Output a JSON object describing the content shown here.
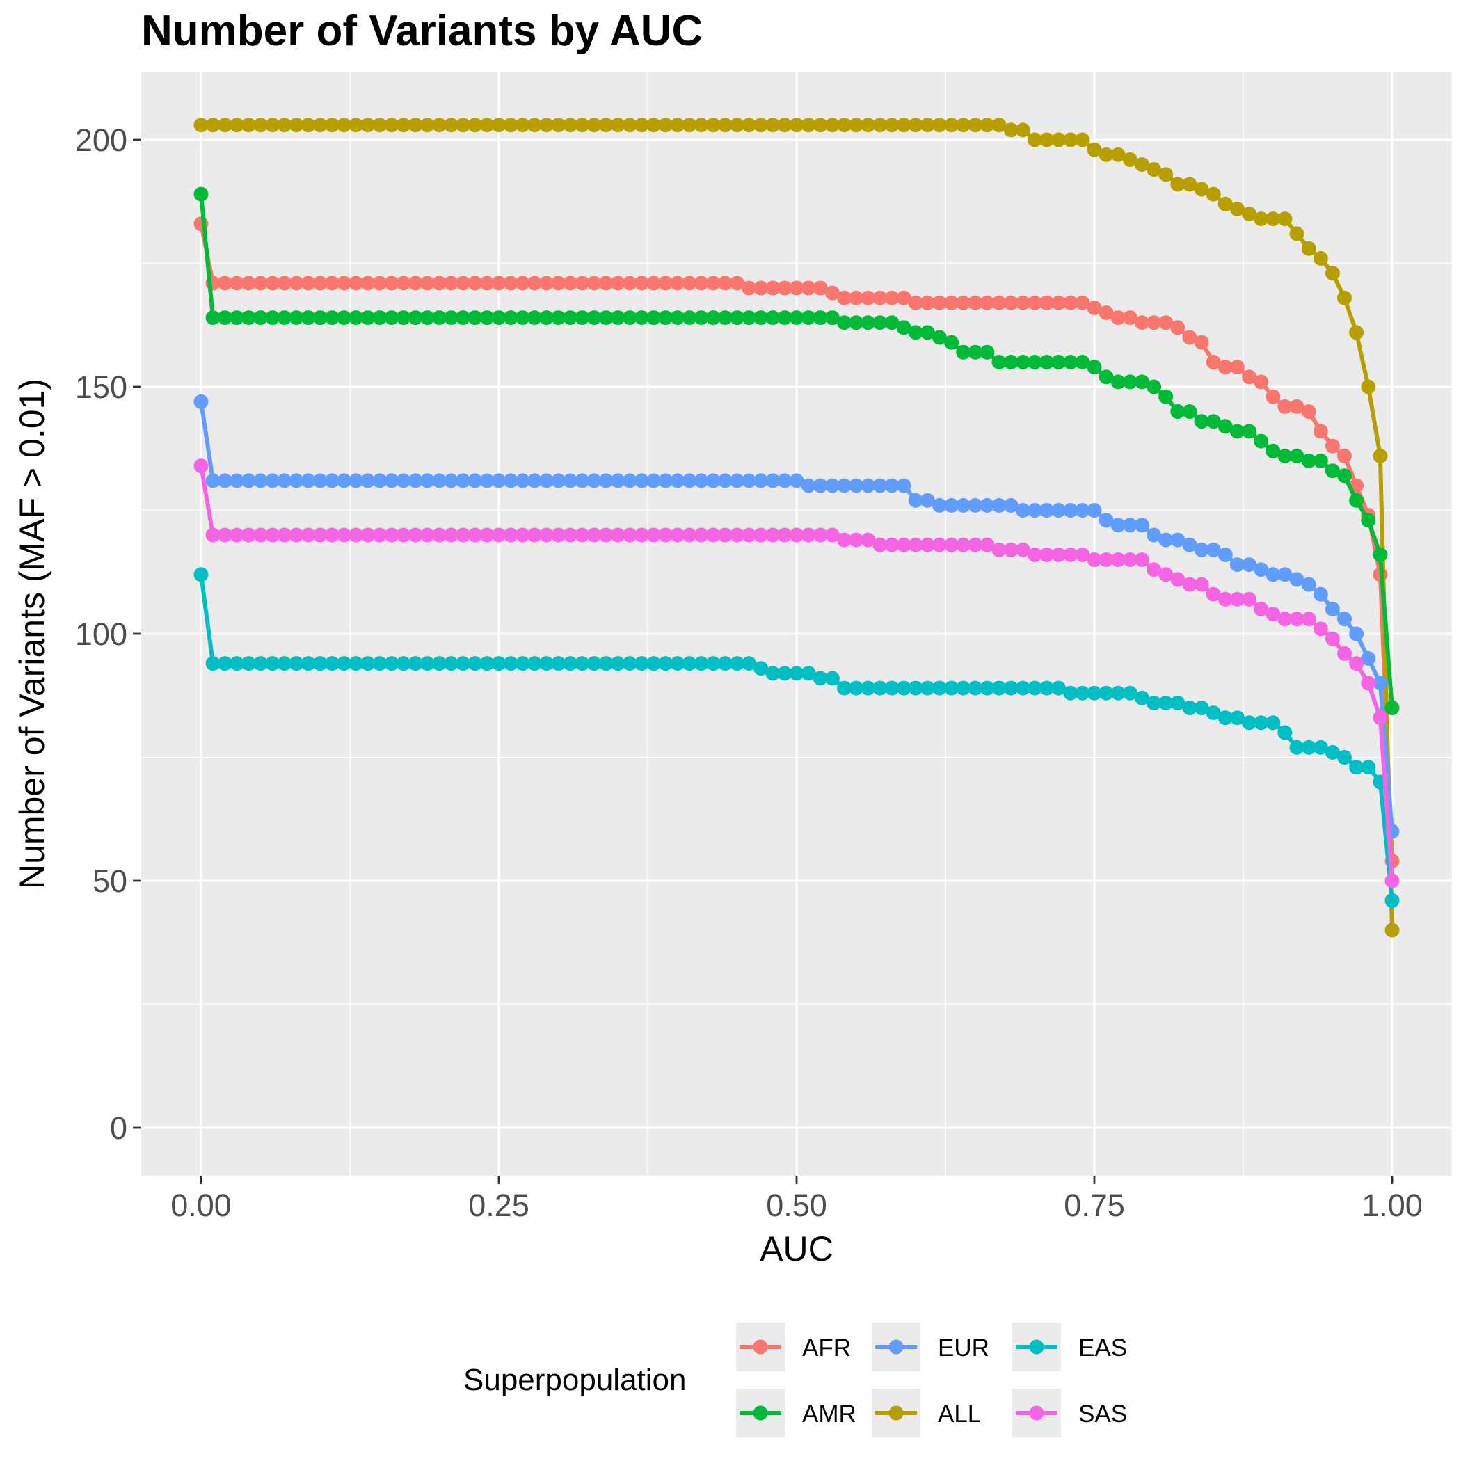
{
  "chart_data": {
    "type": "line",
    "title": "Number of Variants by AUC",
    "xlabel": "AUC",
    "ylabel": "Number of Variants (MAF > 0.01)",
    "xlim": [
      -0.05,
      1.05
    ],
    "ylim": [
      -10,
      213
    ],
    "x_ticks": [
      "0.00",
      "0.25",
      "0.50",
      "0.75",
      "1.00"
    ],
    "x_tick_values": [
      0,
      0.25,
      0.5,
      0.75,
      1
    ],
    "y_ticks": [
      "0",
      "50",
      "100",
      "150",
      "200"
    ],
    "y_tick_values": [
      0,
      50,
      100,
      150,
      200
    ],
    "grid": true,
    "legend": {
      "title": "Superpopulation",
      "position": "bottom",
      "order": [
        "AFR",
        "AMR",
        "EUR",
        "ALL",
        "EAS",
        "SAS"
      ]
    },
    "series": [
      {
        "name": "ALL",
        "color": "#B79F00",
        "points": [
          [
            0,
            203
          ],
          [
            0.66,
            203
          ],
          [
            0.67,
            203
          ],
          [
            0.68,
            202
          ],
          [
            0.69,
            202
          ],
          [
            0.7,
            200
          ],
          [
            0.74,
            200
          ],
          [
            0.75,
            198
          ],
          [
            0.76,
            197
          ],
          [
            0.77,
            197
          ],
          [
            0.78,
            196
          ],
          [
            0.79,
            195
          ],
          [
            0.8,
            194
          ],
          [
            0.81,
            193
          ],
          [
            0.82,
            191
          ],
          [
            0.83,
            191
          ],
          [
            0.84,
            190
          ],
          [
            0.85,
            189
          ],
          [
            0.86,
            187
          ],
          [
            0.87,
            186
          ],
          [
            0.88,
            185
          ],
          [
            0.89,
            184
          ],
          [
            0.9,
            184
          ],
          [
            0.91,
            184
          ],
          [
            0.92,
            181
          ],
          [
            0.93,
            178
          ],
          [
            0.94,
            176
          ],
          [
            0.95,
            173
          ],
          [
            0.96,
            168
          ],
          [
            0.97,
            161
          ],
          [
            0.98,
            150
          ],
          [
            0.99,
            136
          ],
          [
            1.0,
            40
          ]
        ]
      },
      {
        "name": "AFR",
        "color": "#F8766D",
        "points": [
          [
            0,
            183
          ],
          [
            0.01,
            171
          ],
          [
            0.45,
            171
          ],
          [
            0.46,
            170
          ],
          [
            0.52,
            170
          ],
          [
            0.53,
            169
          ],
          [
            0.54,
            168
          ],
          [
            0.59,
            168
          ],
          [
            0.6,
            167
          ],
          [
            0.74,
            167
          ],
          [
            0.75,
            166
          ],
          [
            0.76,
            165
          ],
          [
            0.77,
            164
          ],
          [
            0.78,
            164
          ],
          [
            0.79,
            163
          ],
          [
            0.81,
            163
          ],
          [
            0.82,
            162
          ],
          [
            0.83,
            160
          ],
          [
            0.84,
            159
          ],
          [
            0.85,
            155
          ],
          [
            0.86,
            154
          ],
          [
            0.87,
            154
          ],
          [
            0.88,
            152
          ],
          [
            0.89,
            151
          ],
          [
            0.9,
            148
          ],
          [
            0.91,
            146
          ],
          [
            0.92,
            146
          ],
          [
            0.93,
            145
          ],
          [
            0.94,
            141
          ],
          [
            0.95,
            138
          ],
          [
            0.96,
            136
          ],
          [
            0.97,
            130
          ],
          [
            0.98,
            124
          ],
          [
            0.99,
            112
          ],
          [
            1.0,
            54
          ]
        ]
      },
      {
        "name": "AMR",
        "color": "#00BA38",
        "points": [
          [
            0,
            189
          ],
          [
            0.01,
            164
          ],
          [
            0.53,
            164
          ],
          [
            0.54,
            163
          ],
          [
            0.58,
            163
          ],
          [
            0.59,
            162
          ],
          [
            0.6,
            161
          ],
          [
            0.61,
            161
          ],
          [
            0.62,
            160
          ],
          [
            0.63,
            159
          ],
          [
            0.64,
            157
          ],
          [
            0.65,
            157
          ],
          [
            0.66,
            157
          ],
          [
            0.67,
            155
          ],
          [
            0.74,
            155
          ],
          [
            0.75,
            154
          ],
          [
            0.76,
            152
          ],
          [
            0.77,
            151
          ],
          [
            0.78,
            151
          ],
          [
            0.79,
            151
          ],
          [
            0.8,
            150
          ],
          [
            0.81,
            148
          ],
          [
            0.82,
            145
          ],
          [
            0.83,
            145
          ],
          [
            0.84,
            143
          ],
          [
            0.85,
            143
          ],
          [
            0.86,
            142
          ],
          [
            0.87,
            141
          ],
          [
            0.88,
            141
          ],
          [
            0.89,
            139
          ],
          [
            0.9,
            137
          ],
          [
            0.91,
            136
          ],
          [
            0.92,
            136
          ],
          [
            0.93,
            135
          ],
          [
            0.94,
            135
          ],
          [
            0.95,
            133
          ],
          [
            0.96,
            132
          ],
          [
            0.97,
            127
          ],
          [
            0.98,
            123
          ],
          [
            0.99,
            116
          ],
          [
            1.0,
            85
          ]
        ]
      },
      {
        "name": "EUR",
        "color": "#619CFF",
        "points": [
          [
            0,
            147
          ],
          [
            0.01,
            131
          ],
          [
            0.5,
            131
          ],
          [
            0.51,
            130
          ],
          [
            0.59,
            130
          ],
          [
            0.6,
            127
          ],
          [
            0.61,
            127
          ],
          [
            0.62,
            126
          ],
          [
            0.68,
            126
          ],
          [
            0.69,
            125
          ],
          [
            0.74,
            125
          ],
          [
            0.75,
            125
          ],
          [
            0.76,
            123
          ],
          [
            0.77,
            122
          ],
          [
            0.78,
            122
          ],
          [
            0.79,
            122
          ],
          [
            0.8,
            120
          ],
          [
            0.81,
            119
          ],
          [
            0.82,
            119
          ],
          [
            0.83,
            118
          ],
          [
            0.84,
            117
          ],
          [
            0.85,
            117
          ],
          [
            0.86,
            116
          ],
          [
            0.87,
            114
          ],
          [
            0.88,
            114
          ],
          [
            0.89,
            113
          ],
          [
            0.9,
            112
          ],
          [
            0.91,
            112
          ],
          [
            0.92,
            111
          ],
          [
            0.93,
            110
          ],
          [
            0.94,
            108
          ],
          [
            0.95,
            105
          ],
          [
            0.96,
            103
          ],
          [
            0.97,
            100
          ],
          [
            0.98,
            95
          ],
          [
            0.99,
            90
          ],
          [
            1.0,
            60
          ]
        ]
      },
      {
        "name": "SAS",
        "color": "#F564E3",
        "points": [
          [
            0,
            134
          ],
          [
            0.01,
            120
          ],
          [
            0.53,
            120
          ],
          [
            0.54,
            119
          ],
          [
            0.56,
            119
          ],
          [
            0.57,
            118
          ],
          [
            0.66,
            118
          ],
          [
            0.67,
            117
          ],
          [
            0.69,
            117
          ],
          [
            0.7,
            116
          ],
          [
            0.74,
            116
          ],
          [
            0.75,
            115
          ],
          [
            0.79,
            115
          ],
          [
            0.8,
            113
          ],
          [
            0.81,
            112
          ],
          [
            0.82,
            111
          ],
          [
            0.83,
            110
          ],
          [
            0.84,
            110
          ],
          [
            0.85,
            108
          ],
          [
            0.86,
            107
          ],
          [
            0.87,
            107
          ],
          [
            0.88,
            107
          ],
          [
            0.89,
            105
          ],
          [
            0.9,
            104
          ],
          [
            0.91,
            103
          ],
          [
            0.92,
            103
          ],
          [
            0.93,
            103
          ],
          [
            0.94,
            101
          ],
          [
            0.95,
            99
          ],
          [
            0.96,
            96
          ],
          [
            0.97,
            94
          ],
          [
            0.98,
            90
          ],
          [
            0.99,
            83
          ],
          [
            1.0,
            50
          ]
        ]
      },
      {
        "name": "EAS",
        "color": "#00BFC4",
        "points": [
          [
            0,
            112
          ],
          [
            0.01,
            94
          ],
          [
            0.46,
            94
          ],
          [
            0.47,
            93
          ],
          [
            0.48,
            92
          ],
          [
            0.5,
            92
          ],
          [
            0.51,
            92
          ],
          [
            0.52,
            91
          ],
          [
            0.53,
            91
          ],
          [
            0.54,
            89
          ],
          [
            0.72,
            89
          ],
          [
            0.73,
            88
          ],
          [
            0.78,
            88
          ],
          [
            0.79,
            87
          ],
          [
            0.8,
            86
          ],
          [
            0.82,
            86
          ],
          [
            0.83,
            85
          ],
          [
            0.84,
            85
          ],
          [
            0.85,
            84
          ],
          [
            0.86,
            83
          ],
          [
            0.87,
            83
          ],
          [
            0.88,
            82
          ],
          [
            0.9,
            82
          ],
          [
            0.91,
            80
          ],
          [
            0.92,
            77
          ],
          [
            0.94,
            77
          ],
          [
            0.95,
            76
          ],
          [
            0.96,
            75
          ],
          [
            0.97,
            73
          ],
          [
            0.98,
            73
          ],
          [
            0.99,
            70
          ],
          [
            1.0,
            46
          ]
        ]
      }
    ]
  }
}
